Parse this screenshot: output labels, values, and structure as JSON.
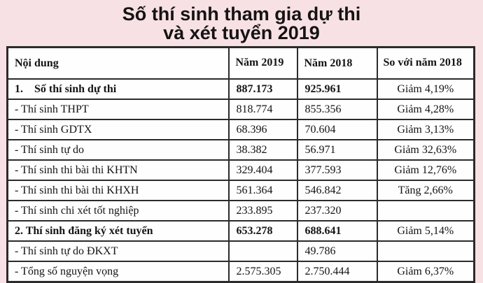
{
  "title_lines": [
    "Số thí sinh tham gia dự thi",
    "và xét tuyển 2019"
  ],
  "chart_data": {
    "type": "table",
    "title": "Số thí sinh tham gia dự thi và xét tuyển 2019",
    "columns": [
      "Nội dung",
      "Năm 2019",
      "Năm 2018",
      "So với năm 2018"
    ],
    "rows": [
      [
        "1.    Số thí sinh dự thi",
        "887.173",
        "925.961",
        "Giảm 4,19%"
      ],
      [
        "- Thí sinh THPT",
        "818.774",
        "855.356",
        "Giảm 4,28%"
      ],
      [
        "- Thí sinh GDTX",
        "68.396",
        "70.604",
        "Giảm 3,13%"
      ],
      [
        "- Thí sinh tự do",
        "38.382",
        "56.971",
        "Giảm 32,63%"
      ],
      [
        "- Thí sinh thi bài thi KHTN",
        "329.404",
        "377.593",
        "Giảm 12,76%"
      ],
      [
        "- Thí sinh thi bài thi KHXH",
        "561.364",
        "546.842",
        "Tăng 2,66%"
      ],
      [
        "- Thí sinh chi xét tốt nghiệp",
        "233.895",
        "237.320",
        ""
      ],
      [
        "2. Thí sinh đăng ký xét tuyển",
        "653.278",
        "688.641",
        "Giảm 5,14%"
      ],
      [
        "- Thí sinh tự do ĐKXT",
        "",
        "49.786",
        ""
      ],
      [
        "- Tổng số nguyện vọng",
        "2.575.305",
        "2.750.444",
        "Giảm 6,37%"
      ]
    ],
    "bold_rows": [
      0,
      7
    ],
    "layout": {
      "grid": "full-borders",
      "legend": "none"
    }
  },
  "colors": {
    "background": "#f8e1e5",
    "cell_background": "#fefefe",
    "border": "#2b2b2b",
    "text": "#141414"
  }
}
